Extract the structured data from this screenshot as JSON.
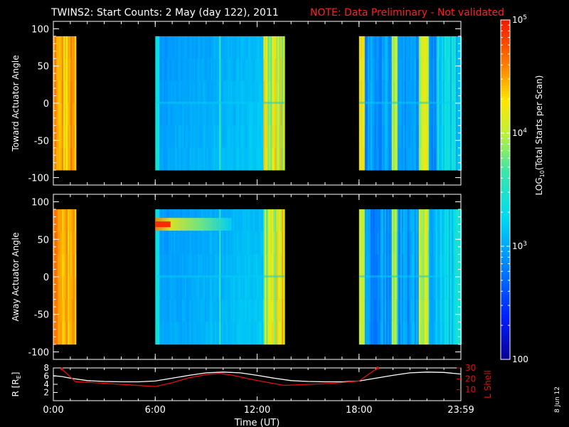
{
  "title": {
    "main": "TWINS2: Start Counts:  2 May (day 122), 2011",
    "note": "NOTE: Data Preliminary - Not validated"
  },
  "side_date": "8 Jun 12",
  "colors": {
    "note": "#ff2020",
    "lshell": "#e01010",
    "radius": "#ffffff",
    "background": "#000000"
  },
  "colorbar": {
    "label": "LOG10(Total Starts per Scan)",
    "label_main": "LOG",
    "label_sub": "10",
    "label_rest": "(Total Starts per Scan)",
    "ticks": [
      {
        "value": 100,
        "base": "100",
        "exp": ""
      },
      {
        "value": 1000,
        "base": "10",
        "exp": "3"
      },
      {
        "value": 10000,
        "base": "10",
        "exp": "4"
      },
      {
        "value": 100000,
        "base": "10",
        "exp": "5"
      }
    ],
    "range": [
      100,
      100000
    ],
    "scale": "log"
  },
  "chart_data": [
    {
      "type": "heatmap",
      "panel": "toward",
      "ylabel": "Toward Actuator Angle",
      "xlim": [
        0,
        24
      ],
      "ylim": [
        -110,
        110
      ],
      "y_ticks": [
        100,
        50,
        0,
        -50,
        -100
      ],
      "data_y_range": [
        -90,
        90
      ],
      "data_intervals_hours": [
        [
          0.0,
          1.3
        ],
        [
          6.0,
          13.6
        ],
        [
          18.0,
          24.0
        ]
      ],
      "typical_log_counts": {
        "0.0-1.3": 4.3,
        "6.0-13.6": 3.1,
        "18.0-24.0": 2.9
      }
    },
    {
      "type": "heatmap",
      "panel": "away",
      "ylabel": "Away Actuator Angle",
      "xlim": [
        0,
        24
      ],
      "ylim": [
        -110,
        110
      ],
      "y_ticks": [
        100,
        50,
        0,
        -50,
        -100
      ],
      "data_y_range": [
        -90,
        90
      ],
      "data_intervals_hours": [
        [
          0.0,
          1.3
        ],
        [
          6.0,
          13.6
        ],
        [
          18.0,
          24.0
        ]
      ],
      "typical_log_counts": {
        "0.0-1.3": 4.3,
        "6.0-13.6": 3.1,
        "18.0-24.0": 2.9
      },
      "band_feature": {
        "angle": 70,
        "hours": [
          6.0,
          10.5
        ],
        "log_counts": 4.0
      }
    },
    {
      "type": "line",
      "panel": "orbit",
      "ylabel_left": "R [RE]",
      "ylabel_left_main": "R [R",
      "ylabel_left_sub": "E",
      "ylabel_left_end": "]",
      "ylabel_right": "L Shell",
      "xlabel": "Time (UT)",
      "xlim": [
        0,
        24
      ],
      "x_ticks": [
        "0:00",
        "6:00",
        "12:00",
        "18:00",
        "23:59"
      ],
      "x_tick_hours": [
        0,
        6,
        12,
        18,
        24
      ],
      "ylim_left": [
        0,
        8
      ],
      "y_ticks_left": [
        2,
        4,
        6,
        8
      ],
      "ylim_right": [
        0,
        30
      ],
      "y_ticks_right": [
        10,
        20,
        30
      ],
      "series": [
        {
          "name": "R",
          "axis": "left",
          "x": [
            0,
            0.5,
            1,
            2,
            3,
            4,
            5,
            6,
            7,
            8,
            9,
            10,
            11,
            12,
            13,
            14,
            15,
            16,
            17,
            18,
            19,
            20,
            21,
            22,
            23,
            24
          ],
          "values": [
            6.1,
            5.9,
            5.5,
            4.9,
            4.7,
            4.6,
            4.6,
            4.8,
            5.5,
            6.2,
            6.8,
            7.0,
            6.8,
            6.2,
            5.5,
            4.9,
            4.7,
            4.6,
            4.6,
            4.8,
            5.5,
            6.2,
            6.8,
            7.0,
            6.9,
            6.5
          ]
        },
        {
          "name": "L Shell",
          "axis": "right",
          "x": [
            0.5,
            1.3,
            3,
            4.5,
            6,
            7,
            8,
            9,
            9.8,
            10.5,
            11.5,
            12.5,
            13.6,
            15,
            16.5,
            18,
            19.1
          ],
          "values": [
            29,
            17.5,
            16,
            14.5,
            13,
            16.5,
            21,
            24,
            25,
            23.5,
            20,
            17,
            14,
            15,
            16,
            18,
            30
          ]
        }
      ]
    }
  ]
}
